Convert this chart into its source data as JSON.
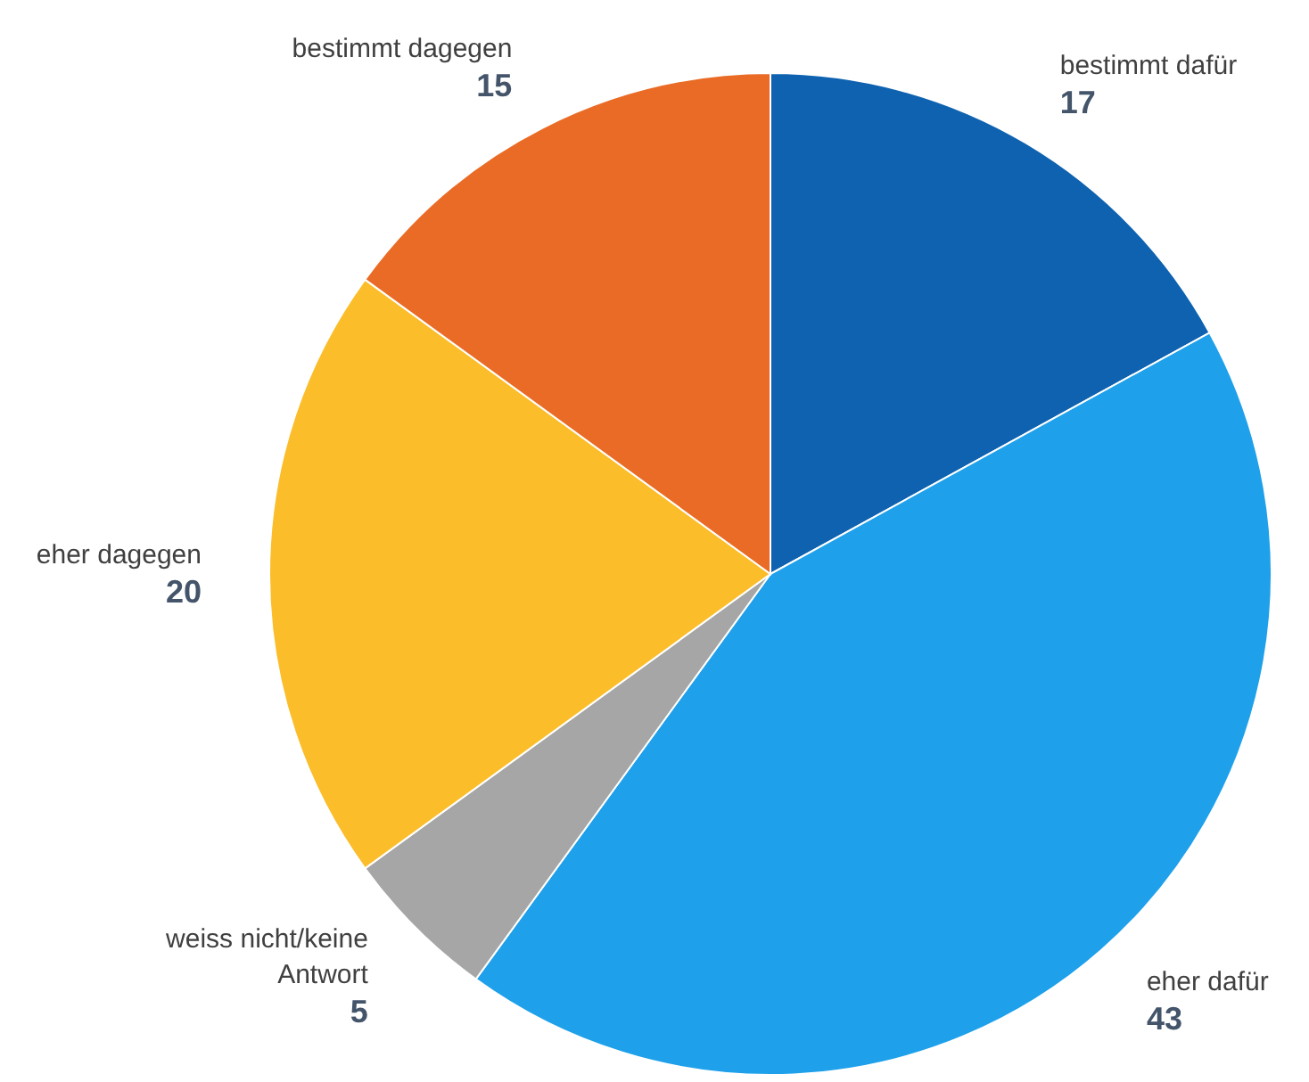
{
  "chart_data": {
    "type": "pie",
    "categories": [
      "bestimmt dafür",
      "eher dafür",
      "weiss nicht/keine Antwort",
      "eher dagegen",
      "bestimmt dagegen"
    ],
    "values": [
      17,
      43,
      5,
      20,
      15
    ],
    "colors": [
      "#0e62b0",
      "#1ea0ea",
      "#a6a6a6",
      "#fbbd2a",
      "#e96b25"
    ],
    "data_labels": true
  }
}
